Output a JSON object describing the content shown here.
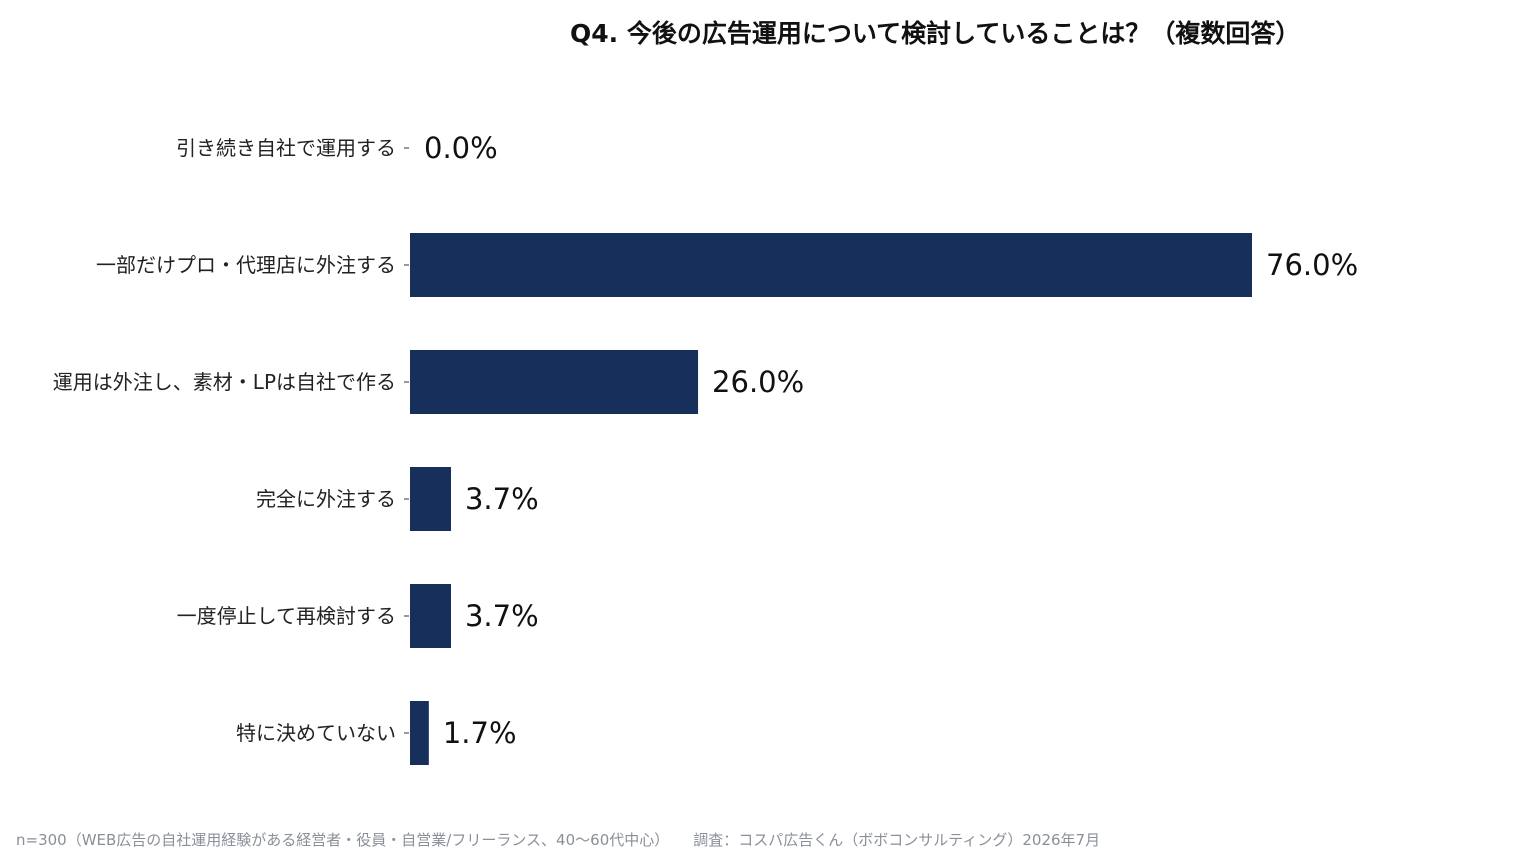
{
  "chart_data": {
    "type": "bar",
    "orientation": "horizontal",
    "title": "Q4. 今後の広告運用について検討していることは？（複数回答）",
    "categories": [
      "引き続き自社で運用する",
      "一部だけプロ・代理店に外注する",
      "運用は外注し、素材・LPは自社で作る",
      "完全に外注する",
      "一度停止して再検討する",
      "特に決めていない"
    ],
    "values": [
      0.0,
      76.0,
      26.0,
      3.7,
      3.7,
      1.7
    ],
    "value_labels": [
      "0.0%",
      "76.0%",
      "26.0%",
      "3.7%",
      "3.7%",
      "1.7%"
    ],
    "unit": "%",
    "xlim": [
      0,
      100
    ],
    "bar_color": "#172f5b",
    "grid": false,
    "legend": "none"
  },
  "footer": {
    "sample": "n=300（WEB広告の自社運用経験がある経営者・役員・自営業/フリーランス、40〜60代中心）",
    "source": "調査：コスパ広告くん（ボボコンサルティング）2026年7月"
  }
}
